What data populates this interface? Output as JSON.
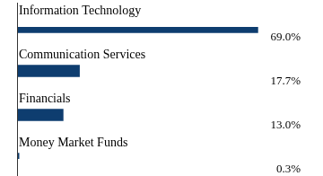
{
  "chart_data": {
    "type": "bar",
    "orientation": "horizontal",
    "categories": [
      "Information Technology",
      "Communication Services",
      "Financials",
      "Money Market Funds"
    ],
    "values": [
      69.0,
      17.7,
      13.0,
      0.3
    ],
    "value_labels": [
      "69.0%",
      "17.7%",
      "13.0%",
      "0.3%"
    ],
    "color": "#0e3d6f",
    "xlim": [
      0,
      80
    ],
    "grid": false,
    "data_labels": true,
    "tick_labels": false
  }
}
